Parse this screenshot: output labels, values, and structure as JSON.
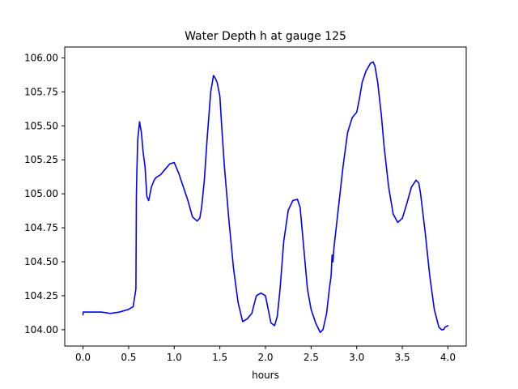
{
  "chart_data": {
    "type": "line",
    "title": "Water Depth h at gauge 125",
    "xlabel": "hours",
    "ylabel": "",
    "xlim": [
      -0.2,
      4.2
    ],
    "ylim": [
      103.88,
      106.08
    ],
    "xticks": [
      0.0,
      0.5,
      1.0,
      1.5,
      2.0,
      2.5,
      3.0,
      3.5,
      4.0
    ],
    "xtick_labels": [
      "0.0",
      "0.5",
      "1.0",
      "1.5",
      "2.0",
      "2.5",
      "3.0",
      "3.5",
      "4.0"
    ],
    "yticks": [
      104.0,
      104.25,
      104.5,
      104.75,
      105.0,
      105.25,
      105.5,
      105.75,
      106.0
    ],
    "ytick_labels": [
      "104.00",
      "104.25",
      "104.50",
      "104.75",
      "105.00",
      "105.25",
      "105.50",
      "105.75",
      "106.00"
    ],
    "grid": false,
    "colors": {
      "line": "#0000ff",
      "axes": "#000000",
      "background": "#ffffff"
    },
    "series": [
      {
        "name": "",
        "x": [
          0.0,
          0.002,
          0.01,
          0.1,
          0.2,
          0.3,
          0.4,
          0.5,
          0.55,
          0.58,
          0.585,
          0.59,
          0.6,
          0.62,
          0.64,
          0.66,
          0.68,
          0.7,
          0.72,
          0.75,
          0.78,
          0.8,
          0.85,
          0.9,
          0.95,
          1.0,
          1.05,
          1.1,
          1.15,
          1.2,
          1.25,
          1.28,
          1.3,
          1.33,
          1.36,
          1.4,
          1.43,
          1.45,
          1.47,
          1.5,
          1.52,
          1.55,
          1.6,
          1.65,
          1.7,
          1.75,
          1.8,
          1.85,
          1.9,
          1.95,
          2.0,
          2.03,
          2.06,
          2.1,
          2.13,
          2.16,
          2.2,
          2.25,
          2.3,
          2.35,
          2.38,
          2.42,
          2.46,
          2.5,
          2.55,
          2.6,
          2.63,
          2.67,
          2.7,
          2.72,
          2.73,
          2.74,
          2.75,
          2.8,
          2.85,
          2.9,
          2.95,
          3.0,
          3.03,
          3.06,
          3.1,
          3.15,
          3.18,
          3.2,
          3.23,
          3.27,
          3.3,
          3.35,
          3.4,
          3.45,
          3.5,
          3.55,
          3.6,
          3.65,
          3.68,
          3.7,
          3.75,
          3.8,
          3.85,
          3.9,
          3.93,
          3.95,
          3.97,
          4.0
        ],
        "y": [
          104.11,
          104.13,
          104.13,
          104.13,
          104.13,
          104.12,
          104.13,
          104.15,
          104.17,
          104.3,
          104.98,
          105.15,
          105.4,
          105.53,
          105.45,
          105.3,
          105.2,
          104.98,
          104.95,
          105.05,
          105.1,
          105.12,
          105.14,
          105.18,
          105.22,
          105.23,
          105.15,
          105.05,
          104.95,
          104.83,
          104.8,
          104.82,
          104.9,
          105.1,
          105.4,
          105.75,
          105.87,
          105.85,
          105.82,
          105.72,
          105.5,
          105.2,
          104.8,
          104.45,
          104.2,
          104.06,
          104.08,
          104.12,
          104.25,
          104.27,
          104.25,
          104.15,
          104.05,
          104.03,
          104.1,
          104.3,
          104.65,
          104.88,
          104.95,
          104.96,
          104.9,
          104.6,
          104.3,
          104.15,
          104.05,
          103.98,
          104.0,
          104.12,
          104.3,
          104.4,
          104.55,
          104.5,
          104.6,
          104.9,
          105.2,
          105.45,
          105.56,
          105.6,
          105.7,
          105.82,
          105.9,
          105.96,
          105.97,
          105.94,
          105.82,
          105.58,
          105.35,
          105.05,
          104.85,
          104.79,
          104.82,
          104.93,
          105.05,
          105.1,
          105.08,
          105.0,
          104.72,
          104.4,
          104.15,
          104.02,
          104.0,
          104.0,
          104.02,
          104.03
        ]
      }
    ]
  }
}
